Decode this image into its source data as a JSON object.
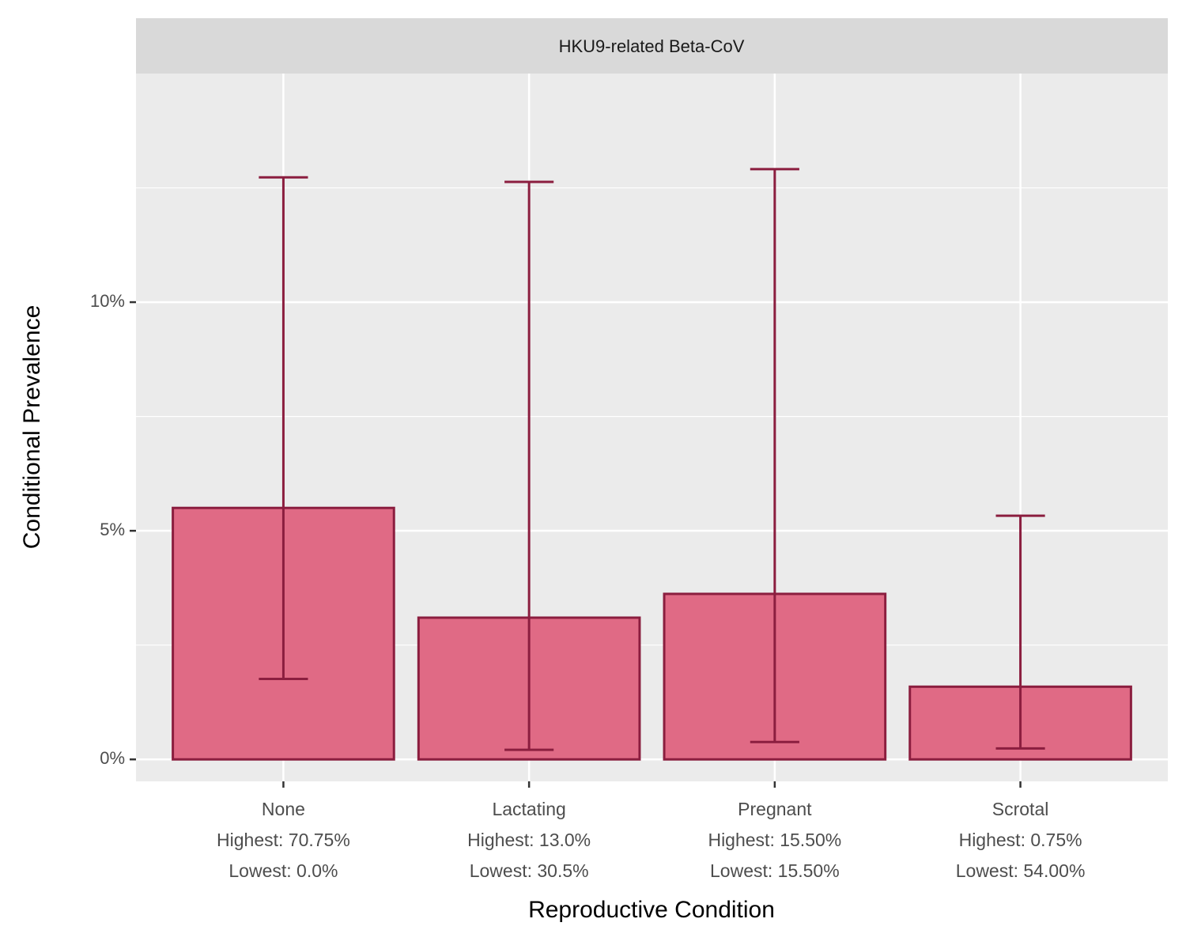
{
  "chart_data": {
    "type": "bar",
    "facet_title": "HKU9-related Beta-CoV",
    "x_label": "Reproductive Condition",
    "y_label": "Conditional Prevalence",
    "categories": [
      [
        "None",
        "Highest: 70.75%",
        "Lowest: 0.0%"
      ],
      [
        "Lactating",
        "Highest: 13.0%",
        "Lowest: 30.5%"
      ],
      [
        "Pregnant",
        "Highest: 15.50%",
        "Lowest: 15.50%"
      ],
      [
        "Scrotal",
        "Highest: 0.75%",
        "Lowest: 54.00%"
      ]
    ],
    "series": [
      {
        "color": "#e06a85",
        "edge_color": "#8b1e3f",
        "values": [
          5.5,
          3.1,
          3.62,
          1.59
        ],
        "lower": [
          1.76,
          0.21,
          0.38,
          0.24
        ],
        "upper": [
          12.73,
          12.63,
          12.91,
          5.33
        ]
      }
    ],
    "ylim": [
      -0.48,
      15.0
    ],
    "yticks": [
      {
        "value": 0,
        "label": "0%"
      },
      {
        "value": 5,
        "label": "5%"
      },
      {
        "value": 10,
        "label": "10%"
      }
    ],
    "yminor": [
      2.5,
      7.5,
      12.5
    ],
    "grid": true
  }
}
